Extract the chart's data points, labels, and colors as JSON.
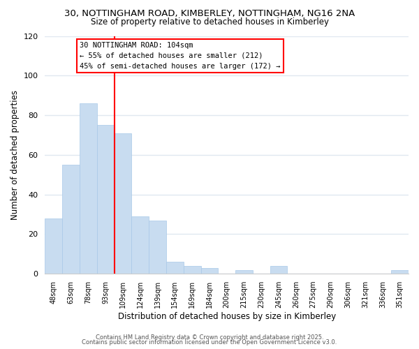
{
  "title": "30, NOTTINGHAM ROAD, KIMBERLEY, NOTTINGHAM, NG16 2NA",
  "subtitle": "Size of property relative to detached houses in Kimberley",
  "xlabel": "Distribution of detached houses by size in Kimberley",
  "ylabel": "Number of detached properties",
  "bar_color": "#c8dcf0",
  "bar_edge_color": "#a8c8e8",
  "vline_color": "red",
  "vline_x_index": 4,
  "categories": [
    "48sqm",
    "63sqm",
    "78sqm",
    "93sqm",
    "109sqm",
    "124sqm",
    "139sqm",
    "154sqm",
    "169sqm",
    "184sqm",
    "200sqm",
    "215sqm",
    "230sqm",
    "245sqm",
    "260sqm",
    "275sqm",
    "290sqm",
    "306sqm",
    "321sqm",
    "336sqm",
    "351sqm"
  ],
  "values": [
    28,
    55,
    86,
    75,
    71,
    29,
    27,
    6,
    4,
    3,
    0,
    2,
    0,
    4,
    0,
    0,
    0,
    0,
    0,
    0,
    2
  ],
  "ylim": [
    0,
    120
  ],
  "yticks": [
    0,
    20,
    40,
    60,
    80,
    100,
    120
  ],
  "annotation_title": "30 NOTTINGHAM ROAD: 104sqm",
  "annotation_line1": "← 55% of detached houses are smaller (212)",
  "annotation_line2": "45% of semi-detached houses are larger (172) →",
  "box_color": "white",
  "box_edge_color": "red",
  "footer1": "Contains HM Land Registry data © Crown copyright and database right 2025.",
  "footer2": "Contains public sector information licensed under the Open Government Licence v3.0.",
  "background_color": "#ffffff",
  "grid_color": "#e0e8f0"
}
